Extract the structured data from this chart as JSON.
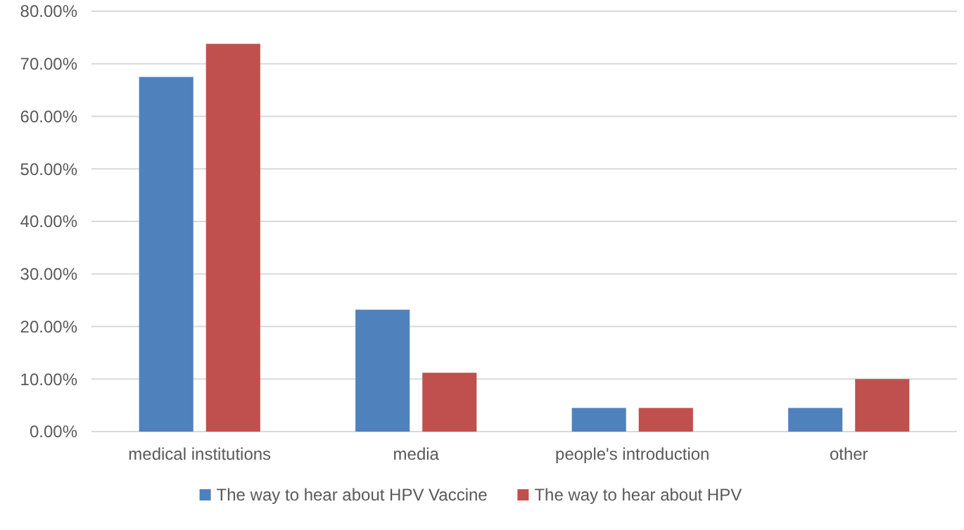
{
  "chart_data": {
    "type": "bar",
    "categories": [
      "medical institutions",
      "media",
      "people's introduction",
      "other"
    ],
    "series": [
      {
        "name": "The way to hear about HPV Vaccine",
        "color": "#4f81bd",
        "values": [
          67.5,
          23.2,
          4.5,
          4.5
        ]
      },
      {
        "name": "The way to hear about HPV",
        "color": "#c0504d",
        "values": [
          73.8,
          11.2,
          4.5,
          10
        ]
      }
    ],
    "ylim": [
      0,
      80
    ],
    "yticks": [
      {
        "value": 0,
        "label": "0.00%"
      },
      {
        "value": 10,
        "label": "10.00%"
      },
      {
        "value": 20,
        "label": "20.00%"
      },
      {
        "value": 30,
        "label": "30.00%"
      },
      {
        "value": 40,
        "label": "40.00%"
      },
      {
        "value": 50,
        "label": "50.00%"
      },
      {
        "value": 60,
        "label": "60.00%"
      },
      {
        "value": 70,
        "label": "70.00%"
      },
      {
        "value": 80,
        "label": "80.00%"
      }
    ],
    "grid": "y",
    "legend": "bottom"
  }
}
